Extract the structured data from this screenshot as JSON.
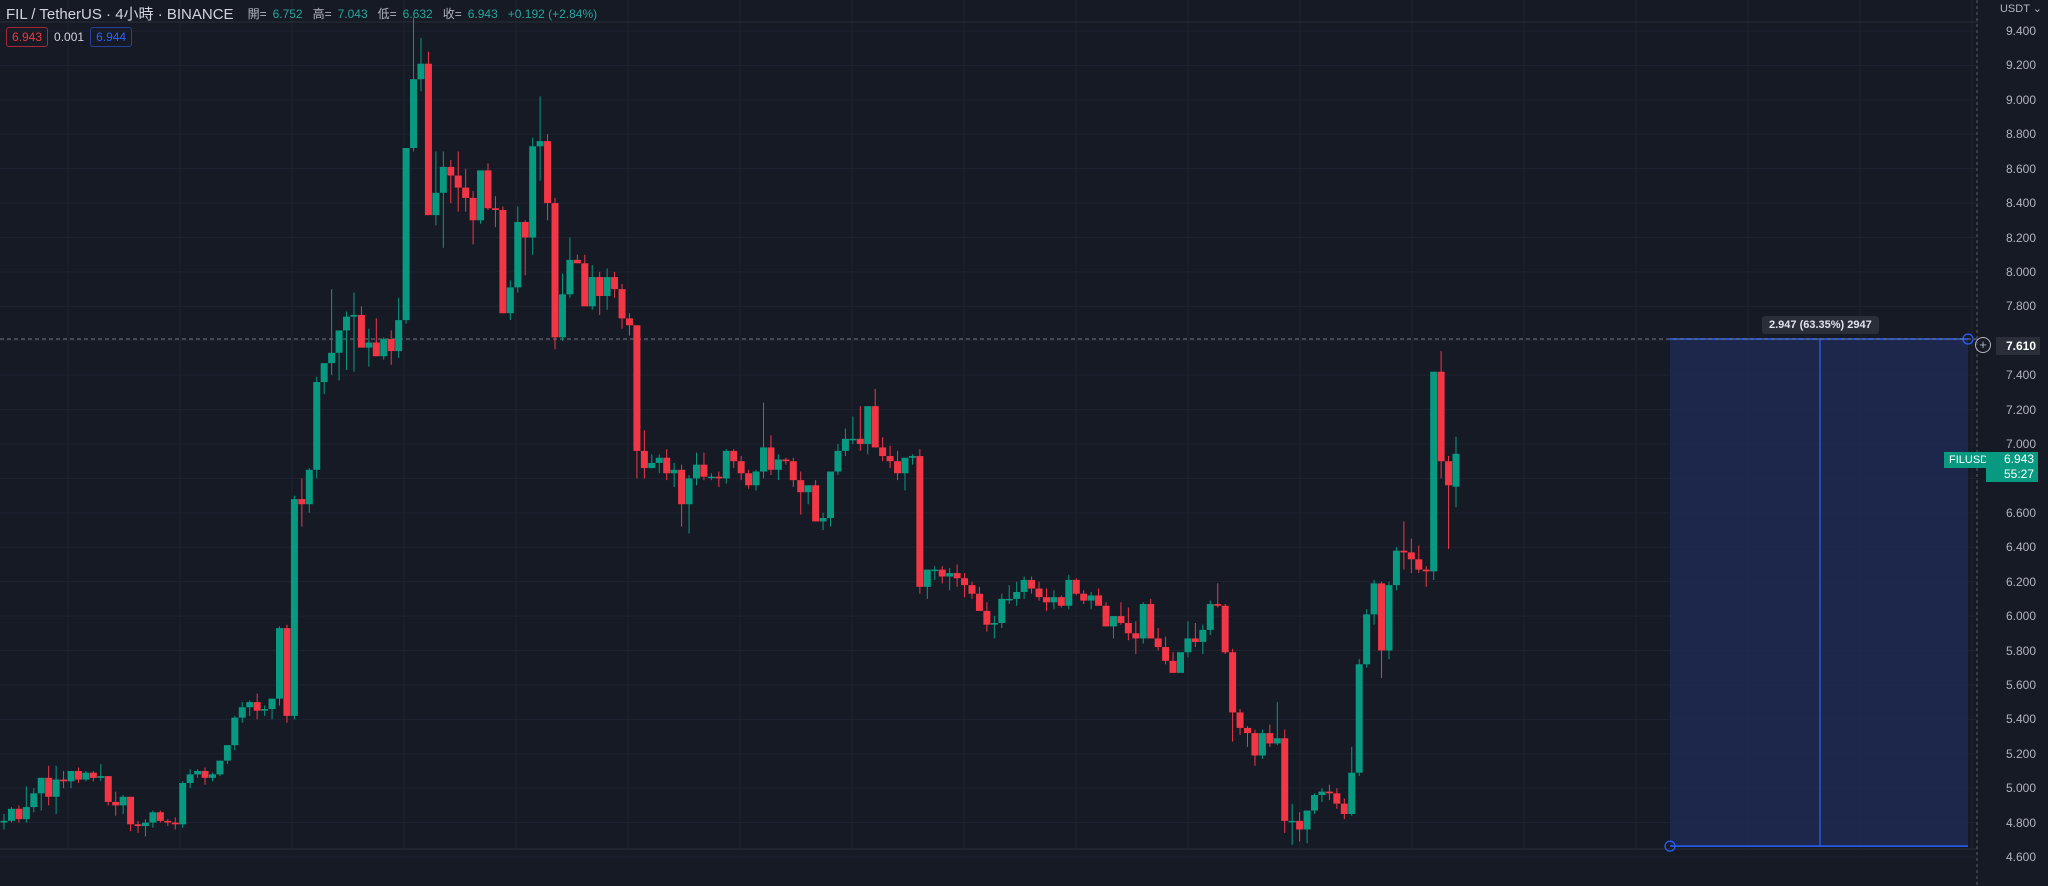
{
  "header": {
    "title": "FIL / TetherUS · 4小時 · BINANCE",
    "ohlc": [
      {
        "key": "開=",
        "value": "6.752"
      },
      {
        "key": "高=",
        "value": "7.043"
      },
      {
        "key": "低=",
        "value": "6.632"
      },
      {
        "key": "收=",
        "value": "6.943"
      }
    ],
    "change": "+0.192 (+2.84%)"
  },
  "trade": {
    "sell_price": "6.943",
    "spread": "0.001",
    "buy_price": "6.944"
  },
  "axis": {
    "unit": "USDT",
    "ticks": [
      "9.400",
      "9.200",
      "9.000",
      "8.800",
      "8.600",
      "8.400",
      "8.200",
      "8.000",
      "7.800",
      "7.400",
      "7.200",
      "7.000",
      "6.800",
      "6.600",
      "6.400",
      "6.200",
      "6.000",
      "5.800",
      "5.600",
      "5.400",
      "5.200",
      "5.000",
      "4.800",
      "4.600"
    ],
    "hline_label": "7.610",
    "symbol_tag": "FILUSDT",
    "last_price": "6.943",
    "countdown": "55:27"
  },
  "measure": {
    "label": "2.947 (63.35%) 2947"
  },
  "colors": {
    "background": "#161a25",
    "up": "#089981",
    "down": "#f23645",
    "grid": "#1f2330",
    "measure_fill": "#1e2a52",
    "measure_line": "#2962ff"
  },
  "chart_data": {
    "type": "candlestick",
    "title": "FIL / TetherUS · 4小時 · BINANCE",
    "ylabel": "USDT",
    "ylim": [
      4.55,
      9.5
    ],
    "horizontal_line": 7.61,
    "measure_range": {
      "from": 4.663,
      "to": 7.61,
      "change": 2.947,
      "pct": 63.35
    },
    "ohlc": [
      [
        4.8,
        4.85,
        4.76,
        4.81
      ],
      [
        4.81,
        4.89,
        4.8,
        4.88
      ],
      [
        4.88,
        4.9,
        4.8,
        4.82
      ],
      [
        4.82,
        5.01,
        4.8,
        4.89
      ],
      [
        4.89,
        5.0,
        4.86,
        4.97
      ],
      [
        4.97,
        5.06,
        4.87,
        5.06
      ],
      [
        5.06,
        5.13,
        4.9,
        4.95
      ],
      [
        4.95,
        5.13,
        4.85,
        5.05
      ],
      [
        5.05,
        5.1,
        5.0,
        5.04
      ],
      [
        5.04,
        5.1,
        5.0,
        5.1
      ],
      [
        5.1,
        5.12,
        5.03,
        5.05
      ],
      [
        5.05,
        5.1,
        5.04,
        5.09
      ],
      [
        5.09,
        5.1,
        5.04,
        5.06
      ],
      [
        5.06,
        5.14,
        5.04,
        5.07
      ],
      [
        5.07,
        5.07,
        4.9,
        4.92
      ],
      [
        4.92,
        4.98,
        4.84,
        4.9
      ],
      [
        4.9,
        4.96,
        4.85,
        4.95
      ],
      [
        4.95,
        4.95,
        4.75,
        4.79
      ],
      [
        4.79,
        4.81,
        4.74,
        4.78
      ],
      [
        4.78,
        4.82,
        4.72,
        4.8
      ],
      [
        4.8,
        4.87,
        4.77,
        4.86
      ],
      [
        4.86,
        4.87,
        4.8,
        4.81
      ],
      [
        4.81,
        4.82,
        4.78,
        4.8
      ],
      [
        4.8,
        4.83,
        4.76,
        4.79
      ],
      [
        4.79,
        5.04,
        4.77,
        5.03
      ],
      [
        5.03,
        5.11,
        5.0,
        5.08
      ],
      [
        5.08,
        5.11,
        5.06,
        5.1
      ],
      [
        5.1,
        5.12,
        5.02,
        5.06
      ],
      [
        5.06,
        5.09,
        5.04,
        5.08
      ],
      [
        5.08,
        5.16,
        5.07,
        5.16
      ],
      [
        5.16,
        5.25,
        5.14,
        5.25
      ],
      [
        5.25,
        5.42,
        5.22,
        5.41
      ],
      [
        5.41,
        5.5,
        5.38,
        5.47
      ],
      [
        5.47,
        5.51,
        5.42,
        5.5
      ],
      [
        5.5,
        5.55,
        5.4,
        5.45
      ],
      [
        5.45,
        5.48,
        5.42,
        5.46
      ],
      [
        5.46,
        5.52,
        5.4,
        5.52
      ],
      [
        5.52,
        5.94,
        5.48,
        5.93
      ],
      [
        5.93,
        5.95,
        5.38,
        5.42
      ],
      [
        5.42,
        6.7,
        5.4,
        6.68
      ],
      [
        6.68,
        6.8,
        6.52,
        6.65
      ],
      [
        6.65,
        6.86,
        6.6,
        6.85
      ],
      [
        6.85,
        7.39,
        6.8,
        7.36
      ],
      [
        7.36,
        7.46,
        7.29,
        7.47
      ],
      [
        7.47,
        7.9,
        7.4,
        7.53
      ],
      [
        7.53,
        7.63,
        7.37,
        7.66
      ],
      [
        7.66,
        7.77,
        7.43,
        7.74
      ],
      [
        7.74,
        7.88,
        7.42,
        7.75
      ],
      [
        7.75,
        7.8,
        7.57,
        7.56
      ],
      [
        7.56,
        7.67,
        7.45,
        7.59
      ],
      [
        7.59,
        7.73,
        7.55,
        7.51
      ],
      [
        7.51,
        7.62,
        7.49,
        7.61
      ],
      [
        7.61,
        7.66,
        7.46,
        7.54
      ],
      [
        7.54,
        7.85,
        7.5,
        7.72
      ],
      [
        7.72,
        8.72,
        7.7,
        8.72
      ],
      [
        8.72,
        9.48,
        8.7,
        9.12
      ],
      [
        9.12,
        9.36,
        9.05,
        9.21
      ],
      [
        9.21,
        9.28,
        8.33,
        8.33
      ],
      [
        8.33,
        8.7,
        8.27,
        8.46
      ],
      [
        8.46,
        8.7,
        8.14,
        8.61
      ],
      [
        8.61,
        8.65,
        8.4,
        8.56
      ],
      [
        8.56,
        8.7,
        8.35,
        8.49
      ],
      [
        8.49,
        8.6,
        8.35,
        8.43
      ],
      [
        8.43,
        8.47,
        8.16,
        8.3
      ],
      [
        8.3,
        8.58,
        8.28,
        8.59
      ],
      [
        8.59,
        8.63,
        8.36,
        8.37
      ],
      [
        8.37,
        8.44,
        8.26,
        8.36
      ],
      [
        8.36,
        8.38,
        7.76,
        7.76
      ],
      [
        7.76,
        7.95,
        7.72,
        7.91
      ],
      [
        7.91,
        8.38,
        7.88,
        8.29
      ],
      [
        8.29,
        8.3,
        7.98,
        8.2
      ],
      [
        8.2,
        8.78,
        8.1,
        8.73
      ],
      [
        8.73,
        9.02,
        8.53,
        8.76
      ],
      [
        8.76,
        8.8,
        8.3,
        8.4
      ],
      [
        8.4,
        8.43,
        7.55,
        7.62
      ],
      [
        7.62,
        7.99,
        7.6,
        7.87
      ],
      [
        7.87,
        8.2,
        7.85,
        8.07
      ],
      [
        8.07,
        8.1,
        8.06,
        8.05
      ],
      [
        8.05,
        8.1,
        7.82,
        7.8
      ],
      [
        7.8,
        8.04,
        7.78,
        7.97
      ],
      [
        7.97,
        8.0,
        7.75,
        7.86
      ],
      [
        7.86,
        8.02,
        7.78,
        7.97
      ],
      [
        7.97,
        8.0,
        7.85,
        7.9
      ],
      [
        7.9,
        7.93,
        7.67,
        7.73
      ],
      [
        7.73,
        7.76,
        7.63,
        7.69
      ],
      [
        7.69,
        7.67,
        6.8,
        6.96
      ],
      [
        6.96,
        7.08,
        6.8,
        6.86
      ],
      [
        6.86,
        6.94,
        6.86,
        6.89
      ],
      [
        6.89,
        6.94,
        6.83,
        6.92
      ],
      [
        6.92,
        6.97,
        6.79,
        6.83
      ],
      [
        6.83,
        6.89,
        6.75,
        6.85
      ],
      [
        6.85,
        6.88,
        6.52,
        6.65
      ],
      [
        6.65,
        6.82,
        6.48,
        6.8
      ],
      [
        6.8,
        6.95,
        6.76,
        6.88
      ],
      [
        6.88,
        6.95,
        6.79,
        6.81
      ],
      [
        6.81,
        6.83,
        6.79,
        6.81
      ],
      [
        6.81,
        6.84,
        6.75,
        6.8
      ],
      [
        6.8,
        6.97,
        6.77,
        6.96
      ],
      [
        6.96,
        6.97,
        6.86,
        6.9
      ],
      [
        6.9,
        6.93,
        6.79,
        6.83
      ],
      [
        6.83,
        6.85,
        6.74,
        6.76
      ],
      [
        6.76,
        6.85,
        6.73,
        6.84
      ],
      [
        6.84,
        7.24,
        6.8,
        6.98
      ],
      [
        6.98,
        7.05,
        6.82,
        6.85
      ],
      [
        6.85,
        6.94,
        6.79,
        6.91
      ],
      [
        6.91,
        6.92,
        6.88,
        6.9
      ],
      [
        6.9,
        6.92,
        6.75,
        6.79
      ],
      [
        6.79,
        6.84,
        6.59,
        6.72
      ],
      [
        6.72,
        6.75,
        6.65,
        6.76
      ],
      [
        6.76,
        6.79,
        6.55,
        6.55
      ],
      [
        6.55,
        6.6,
        6.5,
        6.57
      ],
      [
        6.57,
        6.84,
        6.52,
        6.84
      ],
      [
        6.84,
        7.0,
        6.82,
        6.96
      ],
      [
        6.96,
        7.09,
        6.93,
        7.03
      ],
      [
        7.03,
        7.16,
        7.0,
        7.03
      ],
      [
        7.03,
        7.22,
        6.96,
        7.0
      ],
      [
        7.0,
        7.18,
        6.94,
        7.22
      ],
      [
        7.22,
        7.32,
        6.98,
        6.98
      ],
      [
        6.98,
        7.04,
        6.9,
        6.93
      ],
      [
        6.93,
        6.99,
        6.86,
        6.9
      ],
      [
        6.9,
        6.96,
        6.79,
        6.83
      ],
      [
        6.83,
        6.92,
        6.73,
        6.92
      ],
      [
        6.92,
        6.94,
        6.88,
        6.93
      ],
      [
        6.93,
        6.97,
        6.13,
        6.17
      ],
      [
        6.17,
        6.27,
        6.1,
        6.27
      ],
      [
        6.27,
        6.29,
        6.21,
        6.27
      ],
      [
        6.27,
        6.29,
        6.19,
        6.23
      ],
      [
        6.23,
        6.28,
        6.15,
        6.25
      ],
      [
        6.25,
        6.3,
        6.17,
        6.22
      ],
      [
        6.22,
        6.25,
        6.11,
        6.18
      ],
      [
        6.18,
        6.2,
        6.1,
        6.13
      ],
      [
        6.13,
        6.17,
        6.03,
        6.03
      ],
      [
        6.03,
        6.08,
        5.91,
        5.95
      ],
      [
        5.95,
        6.0,
        5.87,
        5.96
      ],
      [
        5.96,
        6.13,
        5.93,
        6.1
      ],
      [
        6.1,
        6.18,
        6.07,
        6.1
      ],
      [
        6.1,
        6.2,
        6.06,
        6.14
      ],
      [
        6.14,
        6.23,
        6.1,
        6.21
      ],
      [
        6.21,
        6.23,
        6.13,
        6.16
      ],
      [
        6.16,
        6.2,
        6.09,
        6.11
      ],
      [
        6.11,
        6.16,
        6.03,
        6.08
      ],
      [
        6.08,
        6.15,
        6.04,
        6.11
      ],
      [
        6.11,
        6.12,
        6.05,
        6.06
      ],
      [
        6.06,
        6.24,
        6.04,
        6.21
      ],
      [
        6.21,
        6.22,
        6.12,
        6.13
      ],
      [
        6.13,
        6.15,
        6.07,
        6.09
      ],
      [
        6.09,
        6.14,
        6.04,
        6.12
      ],
      [
        6.12,
        6.16,
        6.08,
        6.06
      ],
      [
        6.06,
        6.08,
        5.95,
        5.94
      ],
      [
        5.94,
        6.0,
        5.87,
        6.0
      ]
    ],
    "ohlc_tail": [
      [
        6.0,
        6.08,
        5.95,
        5.96
      ],
      [
        5.96,
        6.05,
        5.86,
        5.9
      ],
      [
        5.9,
        5.97,
        5.78,
        5.87
      ],
      [
        5.87,
        6.08,
        5.84,
        6.07
      ],
      [
        6.07,
        6.1,
        6.02,
        5.87
      ],
      [
        5.87,
        5.93,
        5.8,
        5.82
      ],
      [
        5.82,
        5.88,
        5.72,
        5.74
      ],
      [
        5.74,
        5.79,
        5.68,
        5.67
      ],
      [
        5.67,
        5.78,
        5.68,
        5.79
      ],
      [
        5.79,
        5.97,
        5.76,
        5.87
      ],
      [
        5.87,
        5.96,
        5.82,
        5.85
      ],
      [
        5.85,
        5.95,
        5.78,
        5.92
      ],
      [
        5.92,
        6.09,
        5.89,
        6.07
      ],
      [
        6.07,
        6.19,
        6.05,
        6.06
      ],
      [
        6.06,
        6.07,
        5.78,
        5.79
      ],
      [
        5.79,
        5.81,
        5.27,
        5.44
      ],
      [
        5.44,
        5.46,
        5.31,
        5.35
      ],
      [
        5.35,
        5.36,
        5.24,
        5.32
      ],
      [
        5.32,
        5.34,
        5.13,
        5.19
      ],
      [
        5.19,
        5.34,
        5.17,
        5.32
      ],
      [
        5.32,
        5.37,
        5.24,
        5.26
      ],
      [
        5.26,
        5.5,
        5.25,
        5.29
      ],
      [
        5.29,
        5.34,
        4.74,
        4.81
      ],
      [
        4.81,
        4.91,
        4.67,
        4.81
      ],
      [
        4.81,
        4.86,
        4.69,
        4.76
      ],
      [
        4.76,
        4.86,
        4.68,
        4.87
      ],
      [
        4.87,
        4.97,
        4.85,
        4.96
      ],
      [
        4.96,
        5.0,
        4.92,
        4.98
      ],
      [
        4.98,
        5.02,
        4.93,
        4.97
      ],
      [
        4.97,
        5.0,
        4.88,
        4.91
      ],
      [
        4.91,
        4.94,
        4.82,
        4.85
      ],
      [
        4.85,
        5.24,
        4.84,
        5.09
      ],
      [
        5.09,
        5.75,
        5.07,
        5.72
      ],
      [
        5.72,
        6.04,
        5.7,
        6.01
      ],
      [
        6.01,
        6.21,
        5.95,
        6.19
      ],
      [
        6.19,
        6.2,
        5.64,
        5.8
      ],
      [
        5.8,
        6.2,
        5.75,
        6.18
      ],
      [
        6.18,
        6.4,
        6.15,
        6.38
      ],
      [
        6.38,
        6.55,
        6.27,
        6.37
      ],
      [
        6.37,
        6.45,
        6.25,
        6.33
      ],
      [
        6.33,
        6.41,
        6.25,
        6.27
      ],
      [
        6.27,
        6.29,
        6.17,
        6.26
      ],
      [
        6.26,
        7.42,
        6.21,
        7.42
      ],
      [
        7.42,
        7.54,
        6.8,
        6.9
      ],
      [
        6.9,
        6.93,
        6.39,
        6.76
      ],
      [
        6.752,
        7.043,
        6.632,
        6.943
      ]
    ]
  }
}
